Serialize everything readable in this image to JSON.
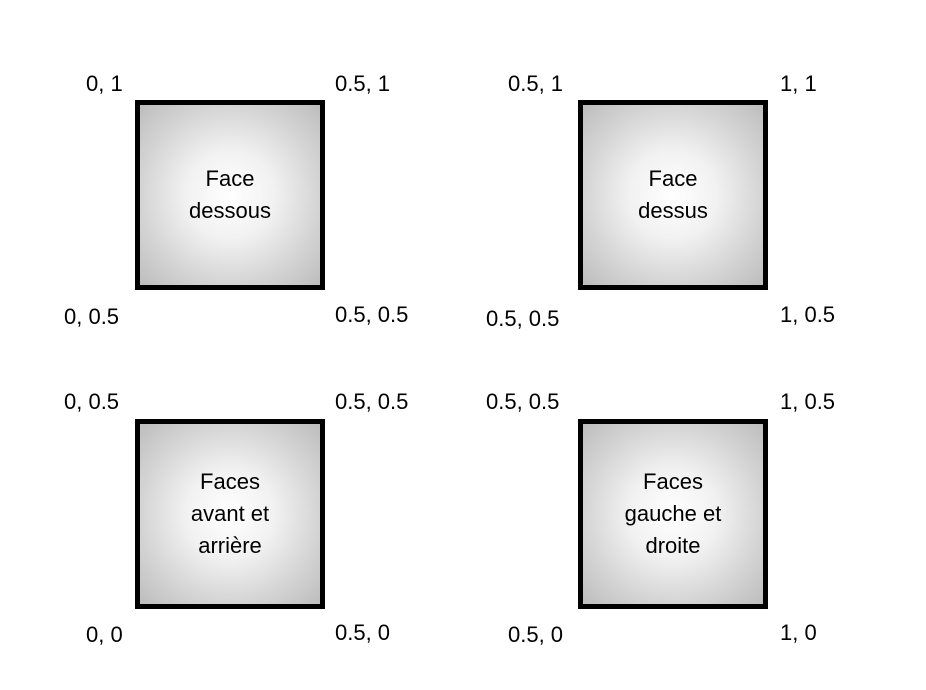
{
  "faces": [
    {
      "id": "dessous",
      "label": "Face\ndessous",
      "corners": {
        "top_left": "0, 1",
        "top_right": "0.5, 1",
        "bottom_left": "0, 0.5",
        "bottom_right": "0.5, 0.5"
      }
    },
    {
      "id": "dessus",
      "label": "Face\ndessus",
      "corners": {
        "top_left": "0.5, 1",
        "top_right": "1, 1",
        "bottom_left": "0.5, 0.5",
        "bottom_right": "1, 0.5"
      }
    },
    {
      "id": "avant-arriere",
      "label": "Faces\navant et\narrière",
      "corners": {
        "top_left": "0, 0.5",
        "top_right": "0.5, 0.5",
        "bottom_left": "0, 0",
        "bottom_right": "0.5, 0"
      }
    },
    {
      "id": "gauche-droite",
      "label": "Faces\ngauche et\ndroite",
      "corners": {
        "top_left": "0.5, 0.5",
        "top_right": "1, 0.5",
        "bottom_left": "0.5, 0",
        "bottom_right": "1, 0"
      }
    }
  ],
  "colors": {
    "border": "#000000",
    "gradient_center": "#ffffff",
    "gradient_edge": "#bdbdbd"
  }
}
